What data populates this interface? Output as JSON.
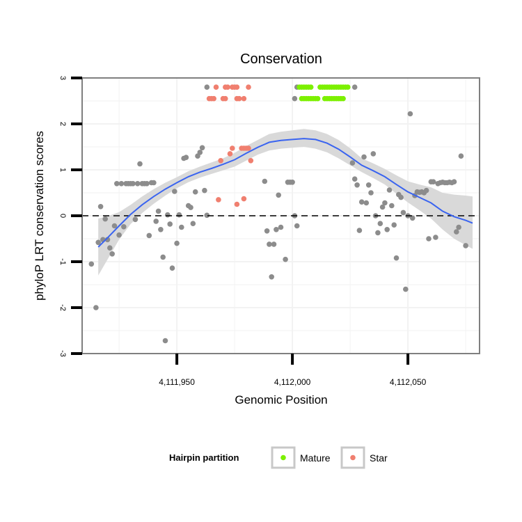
{
  "chart_data": {
    "type": "scatter",
    "title": "Conservation",
    "xlabel": "Genomic Position",
    "ylabel": "phyloP LRT conservation scores",
    "xlim": [
      4111909,
      4112081
    ],
    "ylim": [
      -3,
      3
    ],
    "x_ticks": [
      4111950,
      4112000,
      4112050
    ],
    "x_tick_labels": [
      "4,111,950",
      "4,112,000",
      "4,112,050"
    ],
    "y_ticks": [
      -3,
      -2,
      -1,
      0,
      1,
      2,
      3
    ],
    "y_tick_labels": [
      "-3",
      "-2",
      "-1",
      "0",
      "1",
      "2",
      "3"
    ],
    "reference_line": {
      "y": 0,
      "style": "dashed"
    },
    "legend": {
      "title": "Hairpin partition",
      "position": "bottom",
      "entries": [
        {
          "label": "Mature",
          "color": "#7cf000"
        },
        {
          "label": "Star",
          "color": "#f07f6f"
        }
      ]
    },
    "colors": {
      "other": "#8c8c8c",
      "mature": "#7cf000",
      "star": "#f07f6f",
      "smooth_line": "#3a64f0",
      "ribbon": "#d9d9d9",
      "panel_border": "#7f7f7f",
      "grid": "#f2f2f2"
    },
    "smooth": {
      "x": [
        4111916,
        4111920,
        4111925,
        4111930,
        4111935,
        4111940,
        4111945,
        4111950,
        4111955,
        4111960,
        4111965,
        4111970,
        4111975,
        4111980,
        4111985,
        4111990,
        4111995,
        4112000,
        4112005,
        4112010,
        4112015,
        4112020,
        4112025,
        4112030,
        4112035,
        4112040,
        4112045,
        4112050,
        4112055,
        4112060,
        4112065,
        4112070,
        4112075,
        4112078
      ],
      "y": [
        -0.68,
        -0.48,
        -0.22,
        0.03,
        0.24,
        0.42,
        0.58,
        0.72,
        0.85,
        0.95,
        1.03,
        1.12,
        1.22,
        1.36,
        1.49,
        1.6,
        1.64,
        1.66,
        1.68,
        1.66,
        1.58,
        1.45,
        1.28,
        1.1,
        0.98,
        0.85,
        0.68,
        0.52,
        0.4,
        0.28,
        0.1,
        -0.02,
        -0.1,
        -0.16
      ],
      "lower": [
        -1.3,
        -0.95,
        -0.52,
        -0.18,
        0.06,
        0.26,
        0.44,
        0.6,
        0.73,
        0.83,
        0.91,
        0.99,
        1.07,
        1.2,
        1.33,
        1.42,
        1.46,
        1.48,
        1.5,
        1.46,
        1.38,
        1.25,
        1.1,
        0.95,
        0.82,
        0.68,
        0.48,
        0.29,
        0.12,
        -0.06,
        -0.3,
        -0.5,
        -0.64,
        -0.72
      ],
      "upper": [
        -0.06,
        -0.01,
        0.08,
        0.24,
        0.42,
        0.58,
        0.72,
        0.84,
        0.97,
        1.07,
        1.16,
        1.25,
        1.37,
        1.52,
        1.65,
        1.78,
        1.83,
        1.86,
        1.89,
        1.86,
        1.78,
        1.65,
        1.47,
        1.25,
        1.14,
        1.02,
        0.88,
        0.75,
        0.68,
        0.62,
        0.5,
        0.46,
        0.44,
        0.42
      ]
    },
    "series": [
      {
        "name": "Other",
        "points": [
          [
            4111913,
            -1.05
          ],
          [
            4111915,
            -2.0
          ],
          [
            4111916,
            -0.58
          ],
          [
            4111917,
            0.2
          ],
          [
            4111918,
            -0.52
          ],
          [
            4111919,
            -0.07
          ],
          [
            4111920,
            -0.52
          ],
          [
            4111921,
            -0.7
          ],
          [
            4111922,
            -0.83
          ],
          [
            4111923,
            -0.22
          ],
          [
            4111924,
            0.7
          ],
          [
            4111925,
            -0.42
          ],
          [
            4111926,
            0.7
          ],
          [
            4111927,
            -0.24
          ],
          [
            4111928,
            0.7
          ],
          [
            4111929,
            0.7
          ],
          [
            4111930,
            0.7
          ],
          [
            4111931,
            0.7
          ],
          [
            4111932,
            -0.08
          ],
          [
            4111933,
            0.7
          ],
          [
            4111934,
            1.13
          ],
          [
            4111935,
            0.7
          ],
          [
            4111936,
            0.7
          ],
          [
            4111937,
            0.7
          ],
          [
            4111938,
            -0.43
          ],
          [
            4111939,
            0.72
          ],
          [
            4111940,
            0.72
          ],
          [
            4111941,
            -0.12
          ],
          [
            4111942,
            0.1
          ],
          [
            4111943,
            -0.3
          ],
          [
            4111944,
            -0.9
          ],
          [
            4111945,
            -2.72
          ],
          [
            4111946,
            0.02
          ],
          [
            4111947,
            -0.18
          ],
          [
            4111948,
            -1.14
          ],
          [
            4111949,
            0.53
          ],
          [
            4111950,
            -0.6
          ],
          [
            4111951,
            0.02
          ],
          [
            4111952,
            -0.25
          ],
          [
            4111953,
            1.25
          ],
          [
            4111954,
            1.27
          ],
          [
            4111955,
            0.22
          ],
          [
            4111956,
            0.18
          ],
          [
            4111957,
            -0.17
          ],
          [
            4111958,
            0.52
          ],
          [
            4111959,
            1.3
          ],
          [
            4111960,
            1.38
          ],
          [
            4111961,
            1.48
          ],
          [
            4111962,
            0.55
          ],
          [
            4111963,
            0.01
          ],
          [
            4111988,
            0.75
          ],
          [
            4111989,
            -0.33
          ],
          [
            4111990,
            -0.62
          ],
          [
            4111991,
            -1.33
          ],
          [
            4111992,
            -0.62
          ],
          [
            4111993,
            -0.3
          ],
          [
            4111994,
            0.45
          ],
          [
            4111995,
            -0.25
          ],
          [
            4111997,
            -0.95
          ],
          [
            4111998,
            0.73
          ],
          [
            4111999,
            0.73
          ],
          [
            4112000,
            0.73
          ],
          [
            4112001,
            0.0
          ],
          [
            4112002,
            -0.22
          ],
          [
            4112026,
            1.15
          ],
          [
            4112027,
            0.8
          ],
          [
            4112028,
            0.67
          ],
          [
            4112029,
            -0.32
          ],
          [
            4112030,
            0.3
          ],
          [
            4112031,
            1.28
          ],
          [
            4112032,
            0.28
          ],
          [
            4112033,
            0.67
          ],
          [
            4112034,
            0.5
          ],
          [
            4112035,
            1.35
          ],
          [
            4112036,
            0.0
          ],
          [
            4112037,
            -0.37
          ],
          [
            4112038,
            -0.17
          ],
          [
            4112039,
            0.19
          ],
          [
            4112040,
            0.28
          ],
          [
            4112041,
            -0.3
          ],
          [
            4112042,
            0.56
          ],
          [
            4112043,
            0.22
          ],
          [
            4112044,
            -0.2
          ],
          [
            4112045,
            -0.92
          ],
          [
            4112046,
            0.46
          ],
          [
            4112047,
            0.4
          ],
          [
            4112048,
            0.07
          ],
          [
            4112049,
            -1.6
          ],
          [
            4112050,
            0.0
          ],
          [
            4112051,
            2.22
          ],
          [
            4112052,
            -0.05
          ],
          [
            4112053,
            0.44
          ],
          [
            4112054,
            0.52
          ],
          [
            4112055,
            0.51
          ],
          [
            4112056,
            0.52
          ],
          [
            4112057,
            0.5
          ],
          [
            4112058,
            0.55
          ],
          [
            4112059,
            -0.5
          ],
          [
            4112060,
            0.74
          ],
          [
            4112061,
            0.74
          ],
          [
            4112062,
            -0.47
          ],
          [
            4112063,
            0.7
          ],
          [
            4112064,
            0.72
          ],
          [
            4112065,
            0.73
          ],
          [
            4112066,
            0.72
          ],
          [
            4112067,
            0.72
          ],
          [
            4112068,
            0.73
          ],
          [
            4112069,
            0.72
          ],
          [
            4112070,
            0.74
          ],
          [
            4112071,
            -0.35
          ],
          [
            4112072,
            -0.25
          ],
          [
            4112073,
            1.3
          ],
          [
            4112075,
            -0.65
          ],
          [
            4111963,
            2.8
          ],
          [
            4112001,
            2.55
          ],
          [
            4112002,
            2.8
          ],
          [
            4112027,
            2.8
          ]
        ]
      },
      {
        "name": "Mature",
        "points": [
          [
            4112003,
            2.8
          ],
          [
            4112004,
            2.8
          ],
          [
            4112005,
            2.8
          ],
          [
            4112006,
            2.8
          ],
          [
            4112007,
            2.8
          ],
          [
            4112008,
            2.8
          ],
          [
            4112012,
            2.8
          ],
          [
            4112013,
            2.8
          ],
          [
            4112014,
            2.8
          ],
          [
            4112015,
            2.8
          ],
          [
            4112016,
            2.8
          ],
          [
            4112017,
            2.8
          ],
          [
            4112018,
            2.8
          ],
          [
            4112019,
            2.8
          ],
          [
            4112020,
            2.8
          ],
          [
            4112021,
            2.8
          ],
          [
            4112022,
            2.8
          ],
          [
            4112023,
            2.8
          ],
          [
            4112024,
            2.8
          ],
          [
            4112004,
            2.55
          ],
          [
            4112005,
            2.55
          ],
          [
            4112006,
            2.55
          ],
          [
            4112007,
            2.55
          ],
          [
            4112008,
            2.55
          ],
          [
            4112009,
            2.55
          ],
          [
            4112010,
            2.55
          ],
          [
            4112011,
            2.55
          ],
          [
            4112014,
            2.55
          ],
          [
            4112015,
            2.55
          ],
          [
            4112016,
            2.55
          ],
          [
            4112017,
            2.55
          ],
          [
            4112018,
            2.55
          ],
          [
            4112019,
            2.55
          ],
          [
            4112020,
            2.55
          ],
          [
            4112021,
            2.55
          ],
          [
            4112022,
            2.55
          ]
        ]
      },
      {
        "name": "Star",
        "points": [
          [
            4111967,
            2.8
          ],
          [
            4111971,
            2.8
          ],
          [
            4111972,
            2.8
          ],
          [
            4111974,
            2.8
          ],
          [
            4111975,
            2.8
          ],
          [
            4111976,
            2.8
          ],
          [
            4111981,
            2.8
          ],
          [
            4111964,
            2.55
          ],
          [
            4111965,
            2.55
          ],
          [
            4111966,
            2.55
          ],
          [
            4111970,
            2.55
          ],
          [
            4111971,
            2.55
          ],
          [
            4111976,
            2.55
          ],
          [
            4111977,
            2.55
          ],
          [
            4111979,
            2.55
          ],
          [
            4111969,
            1.2
          ],
          [
            4111973,
            1.35
          ],
          [
            4111974,
            1.47
          ],
          [
            4111978,
            1.47
          ],
          [
            4111979,
            1.47
          ],
          [
            4111980,
            1.47
          ],
          [
            4111981,
            1.47
          ],
          [
            4111982,
            1.2
          ],
          [
            4111968,
            0.35
          ],
          [
            4111976,
            0.25
          ],
          [
            4111979,
            0.37
          ]
        ]
      }
    ]
  }
}
